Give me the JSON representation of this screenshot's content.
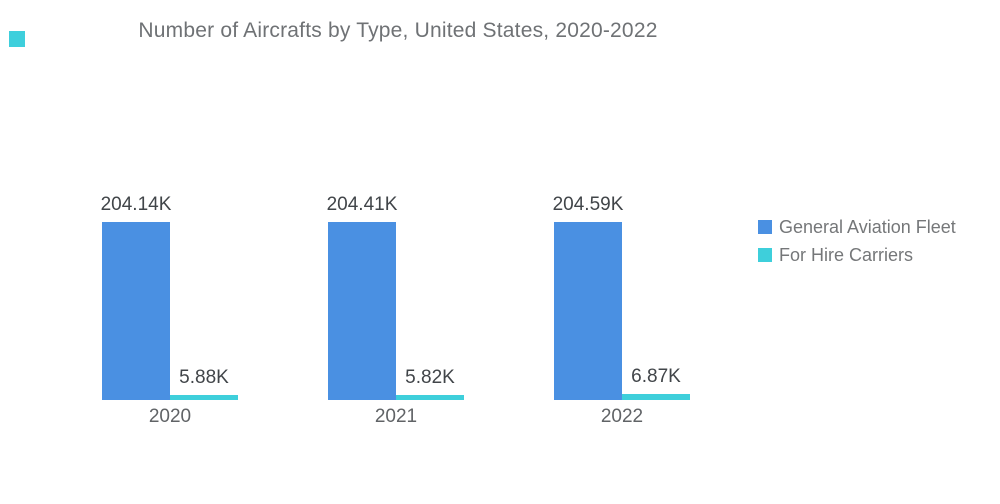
{
  "decor": {
    "corner_square_color": "#3ECFDC"
  },
  "chart_data": {
    "type": "bar",
    "title": "Number of Aircrafts by Type, United States, 2020-2022",
    "categories": [
      "2020",
      "2021",
      "2022"
    ],
    "series": [
      {
        "name": "General Aviation Fleet",
        "color": "#4A90E2",
        "values": [
          204140,
          204410,
          204590
        ],
        "value_labels": [
          "204.14K",
          "204.41K",
          "204.59K"
        ]
      },
      {
        "name": "For Hire Carriers",
        "color": "#3ECFDB",
        "values": [
          5880,
          5820,
          6870
        ],
        "value_labels": [
          "5.88K",
          "5.82K",
          "6.87K"
        ]
      }
    ],
    "ylim": [
      0,
      204590
    ],
    "grid": false,
    "y_axis_visible": false,
    "legend_position": "right",
    "title_color": "#6F7275",
    "value_label_color": "#414549",
    "axis_tick_color": "#606366",
    "legend_text_color": "#757779",
    "background_color": "#ffffff"
  }
}
